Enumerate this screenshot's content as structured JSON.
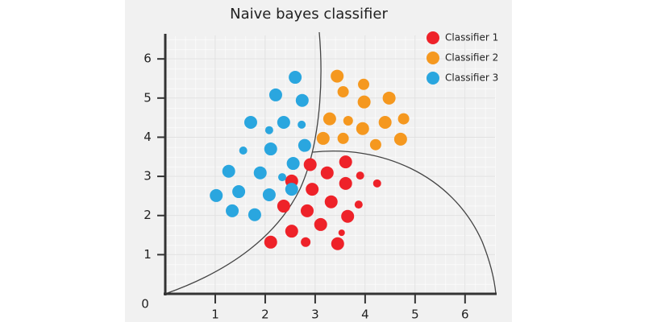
{
  "chart_data": {
    "type": "scatter",
    "title": "Naive bayes classifier",
    "origin_label": "0",
    "xlim": [
      0,
      6.6
    ],
    "ylim": [
      0,
      6.6
    ],
    "xticks": [
      1,
      2,
      3,
      4,
      5,
      6
    ],
    "yticks": [
      1,
      2,
      3,
      4,
      5,
      6
    ],
    "grid": true,
    "legend": "upper right",
    "series": [
      {
        "name": "Classifier 1",
        "color": "#ee2229",
        "x": [
          2.9,
          3.61,
          3.24,
          3.9,
          4.24,
          2.53,
          2.94,
          3.61,
          2.37,
          2.84,
          3.32,
          3.87,
          3.65,
          3.11,
          2.53,
          2.11,
          2.81,
          3.53,
          3.45
        ],
        "values": [
          3.3,
          3.37,
          3.09,
          3.02,
          2.82,
          2.88,
          2.67,
          2.82,
          2.24,
          2.12,
          2.35,
          2.28,
          1.98,
          1.77,
          1.6,
          1.32,
          1.32,
          1.56,
          1.28
        ],
        "sizes": [
          8,
          8,
          8,
          5,
          5,
          8,
          8,
          8,
          8,
          8,
          8,
          5,
          8,
          8,
          8,
          8,
          6,
          4,
          8
        ]
      },
      {
        "name": "Classifier 2",
        "color": "#f5981f",
        "x": [
          3.44,
          3.97,
          3.56,
          4.48,
          3.98,
          3.29,
          3.66,
          4.4,
          4.77,
          3.95,
          3.56,
          3.16,
          4.21,
          4.71
        ],
        "values": [
          5.56,
          5.35,
          5.16,
          5.0,
          4.9,
          4.47,
          4.42,
          4.38,
          4.47,
          4.22,
          3.97,
          3.97,
          3.81,
          3.95
        ],
        "sizes": [
          8,
          7,
          7,
          8,
          8,
          8,
          6,
          8,
          7,
          8,
          7,
          8,
          7,
          8
        ]
      },
      {
        "name": "Classifier 3",
        "color": "#2aa6df",
        "x": [
          2.6,
          2.21,
          2.74,
          1.71,
          2.37,
          2.08,
          2.73,
          2.79,
          2.11,
          1.56,
          2.56,
          1.27,
          1.9,
          2.34,
          2.53,
          1.47,
          2.08,
          1.02,
          1.34,
          1.79
        ],
        "values": [
          5.53,
          5.08,
          4.94,
          4.38,
          4.38,
          4.18,
          4.32,
          3.79,
          3.7,
          3.66,
          3.33,
          3.13,
          3.09,
          2.98,
          2.67,
          2.61,
          2.53,
          2.51,
          2.12,
          2.02
        ],
        "sizes": [
          8,
          8,
          8,
          8,
          8,
          5,
          5,
          8,
          8,
          5,
          8,
          8,
          8,
          5,
          8,
          8,
          8,
          8,
          8,
          8
        ]
      }
    ]
  }
}
